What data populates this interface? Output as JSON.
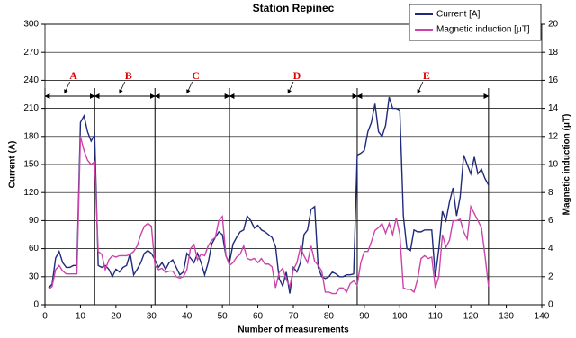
{
  "chart_data": {
    "type": "line",
    "title": "Station Repinec",
    "x_label": "Number of measurements",
    "y_label": "Current  (A)",
    "y2_label": "Magnetic induction (μT)",
    "xlim": [
      0,
      140
    ],
    "xticks": [
      0,
      10,
      20,
      30,
      40,
      50,
      60,
      70,
      80,
      90,
      100,
      110,
      120,
      130,
      140
    ],
    "ylim": [
      0,
      300
    ],
    "yticks": [
      0,
      30,
      60,
      90,
      120,
      150,
      180,
      210,
      240,
      270,
      300
    ],
    "y2lim": [
      0,
      20
    ],
    "y2ticks": [
      0,
      2,
      4,
      6,
      8,
      10,
      12,
      14,
      16,
      18,
      20
    ],
    "grid": true,
    "legend": "top-right",
    "x": [
      1,
      2,
      3,
      4,
      5,
      6,
      7,
      8,
      9,
      10,
      11,
      12,
      13,
      14,
      15,
      16,
      17,
      18,
      19,
      20,
      21,
      22,
      23,
      24,
      25,
      26,
      27,
      28,
      29,
      30,
      31,
      32,
      33,
      34,
      35,
      36,
      37,
      38,
      39,
      40,
      41,
      42,
      43,
      44,
      45,
      46,
      47,
      48,
      49,
      50,
      51,
      52,
      53,
      54,
      55,
      56,
      57,
      58,
      59,
      60,
      61,
      62,
      63,
      64,
      65,
      66,
      67,
      68,
      69,
      70,
      71,
      72,
      73,
      74,
      75,
      76,
      77,
      78,
      79,
      80,
      81,
      82,
      83,
      84,
      85,
      86,
      87,
      88,
      89,
      90,
      91,
      92,
      93,
      94,
      95,
      96,
      97,
      98,
      99,
      100,
      101,
      102,
      103,
      104,
      105,
      106,
      107,
      108,
      109,
      110,
      111,
      112,
      113,
      114,
      115,
      116,
      117,
      118,
      119,
      120,
      121,
      122,
      123,
      124,
      125
    ],
    "series": [
      {
        "name": "Current [A]",
        "color": "#1f2a7a",
        "values": [
          18,
          22,
          50,
          57,
          45,
          40,
          40,
          42,
          42,
          195,
          202,
          185,
          175,
          182,
          42,
          40,
          42,
          38,
          30,
          38,
          35,
          40,
          42,
          55,
          32,
          38,
          45,
          55,
          58,
          55,
          48,
          40,
          45,
          38,
          45,
          48,
          40,
          32,
          35,
          55,
          50,
          45,
          55,
          45,
          32,
          45,
          65,
          72,
          78,
          75,
          52,
          45,
          65,
          72,
          78,
          80,
          95,
          90,
          82,
          85,
          80,
          78,
          75,
          72,
          62,
          28,
          20,
          35,
          12,
          40,
          35,
          45,
          75,
          80,
          102,
          105,
          40,
          30,
          28,
          30,
          35,
          33,
          30,
          30,
          32,
          32,
          33,
          160,
          162,
          165,
          185,
          195,
          215,
          185,
          180,
          192,
          222,
          210,
          210,
          208,
          95,
          60,
          58,
          80,
          78,
          78,
          80,
          80,
          80,
          30,
          60,
          100,
          90,
          110,
          125,
          95,
          115,
          160,
          150,
          140,
          158,
          140,
          145,
          135,
          128
        ]
      },
      {
        "name": "Magnetic induction [μT]",
        "color": "#cc44aa",
        "axis": "y2",
        "values": [
          1.1,
          1.3,
          2.5,
          2.8,
          2.4,
          2.2,
          2.2,
          2.2,
          2.2,
          12,
          11,
          10.3,
          10,
          10.2,
          3.8,
          3.6,
          2.5,
          3.2,
          3.5,
          3.4,
          3.5,
          3.5,
          3.5,
          3.6,
          3.8,
          4.2,
          5,
          5.6,
          5.8,
          5.6,
          2.8,
          2.5,
          2.6,
          2.3,
          2.4,
          2.4,
          2,
          1.9,
          2,
          2.5,
          4,
          4.3,
          3.2,
          3.6,
          3.5,
          4.2,
          4.6,
          4.8,
          6,
          6.3,
          3.5,
          2.8,
          3,
          3.4,
          3.6,
          4.2,
          3.3,
          3.2,
          3.3,
          3,
          3.3,
          2.9,
          2.9,
          2.7,
          1.2,
          2.3,
          2.6,
          1.8,
          1.3,
          2.5,
          3,
          4.1,
          3.5,
          3,
          4.2,
          3.1,
          2.8,
          2.4,
          0.9,
          0.9,
          0.8,
          0.8,
          1.2,
          1.2,
          0.9,
          1.5,
          1.7,
          1.4,
          3,
          3.8,
          3.8,
          4.5,
          5.3,
          5.5,
          5.8,
          5.1,
          5.8,
          5,
          6.2,
          5,
          1.2,
          1.1,
          1.1,
          0.9,
          1.8,
          3.3,
          3.5,
          3.3,
          3.4,
          1.2,
          2,
          5,
          4.1,
          4.6,
          6,
          6,
          6.1,
          5.2,
          4.7,
          7,
          6.5,
          6,
          5.5,
          3.5,
          1.3
        ]
      }
    ],
    "segments": [
      {
        "label": "A",
        "start": 0,
        "end": 14
      },
      {
        "label": "B",
        "start": 14,
        "end": 31
      },
      {
        "label": "C",
        "start": 31,
        "end": 52
      },
      {
        "label": "D",
        "start": 52,
        "end": 88
      },
      {
        "label": "E",
        "start": 88,
        "end": 125
      }
    ]
  }
}
